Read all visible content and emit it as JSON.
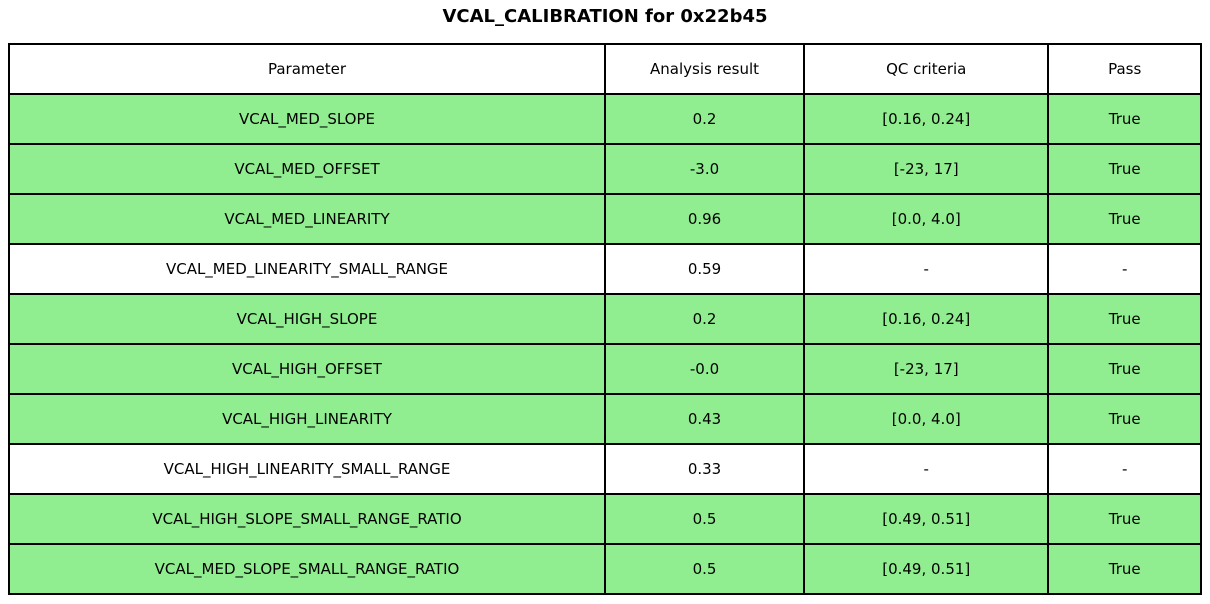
{
  "chart_data": {
    "type": "table",
    "title": "VCAL_CALIBRATION for 0x22b45",
    "columns": [
      "Parameter",
      "Analysis result",
      "QC criteria",
      "Pass"
    ],
    "rows": [
      {
        "parameter": "VCAL_MED_SLOPE",
        "result": "0.2",
        "criteria": "[0.16, 0.24]",
        "pass": "True",
        "highlight": true
      },
      {
        "parameter": "VCAL_MED_OFFSET",
        "result": "-3.0",
        "criteria": "[-23, 17]",
        "pass": "True",
        "highlight": true
      },
      {
        "parameter": "VCAL_MED_LINEARITY",
        "result": "0.96",
        "criteria": "[0.0, 4.0]",
        "pass": "True",
        "highlight": true
      },
      {
        "parameter": "VCAL_MED_LINEARITY_SMALL_RANGE",
        "result": "0.59",
        "criteria": "-",
        "pass": "-",
        "highlight": false
      },
      {
        "parameter": "VCAL_HIGH_SLOPE",
        "result": "0.2",
        "criteria": "[0.16, 0.24]",
        "pass": "True",
        "highlight": true
      },
      {
        "parameter": "VCAL_HIGH_OFFSET",
        "result": "-0.0",
        "criteria": "[-23, 17]",
        "pass": "True",
        "highlight": true
      },
      {
        "parameter": "VCAL_HIGH_LINEARITY",
        "result": "0.43",
        "criteria": "[0.0, 4.0]",
        "pass": "True",
        "highlight": true
      },
      {
        "parameter": "VCAL_HIGH_LINEARITY_SMALL_RANGE",
        "result": "0.33",
        "criteria": "-",
        "pass": "-",
        "highlight": false
      },
      {
        "parameter": "VCAL_HIGH_SLOPE_SMALL_RANGE_RATIO",
        "result": "0.5",
        "criteria": "[0.49, 0.51]",
        "pass": "True",
        "highlight": true
      },
      {
        "parameter": "VCAL_MED_SLOPE_SMALL_RANGE_RATIO",
        "result": "0.5",
        "criteria": "[0.49, 0.51]",
        "pass": "True",
        "highlight": true
      }
    ],
    "layout": {
      "legend": "none",
      "grid": "cell-borders",
      "pass_row_bg": "#90EE90",
      "neutral_row_bg": "#FFFFFF",
      "border_color": "#000000"
    }
  }
}
